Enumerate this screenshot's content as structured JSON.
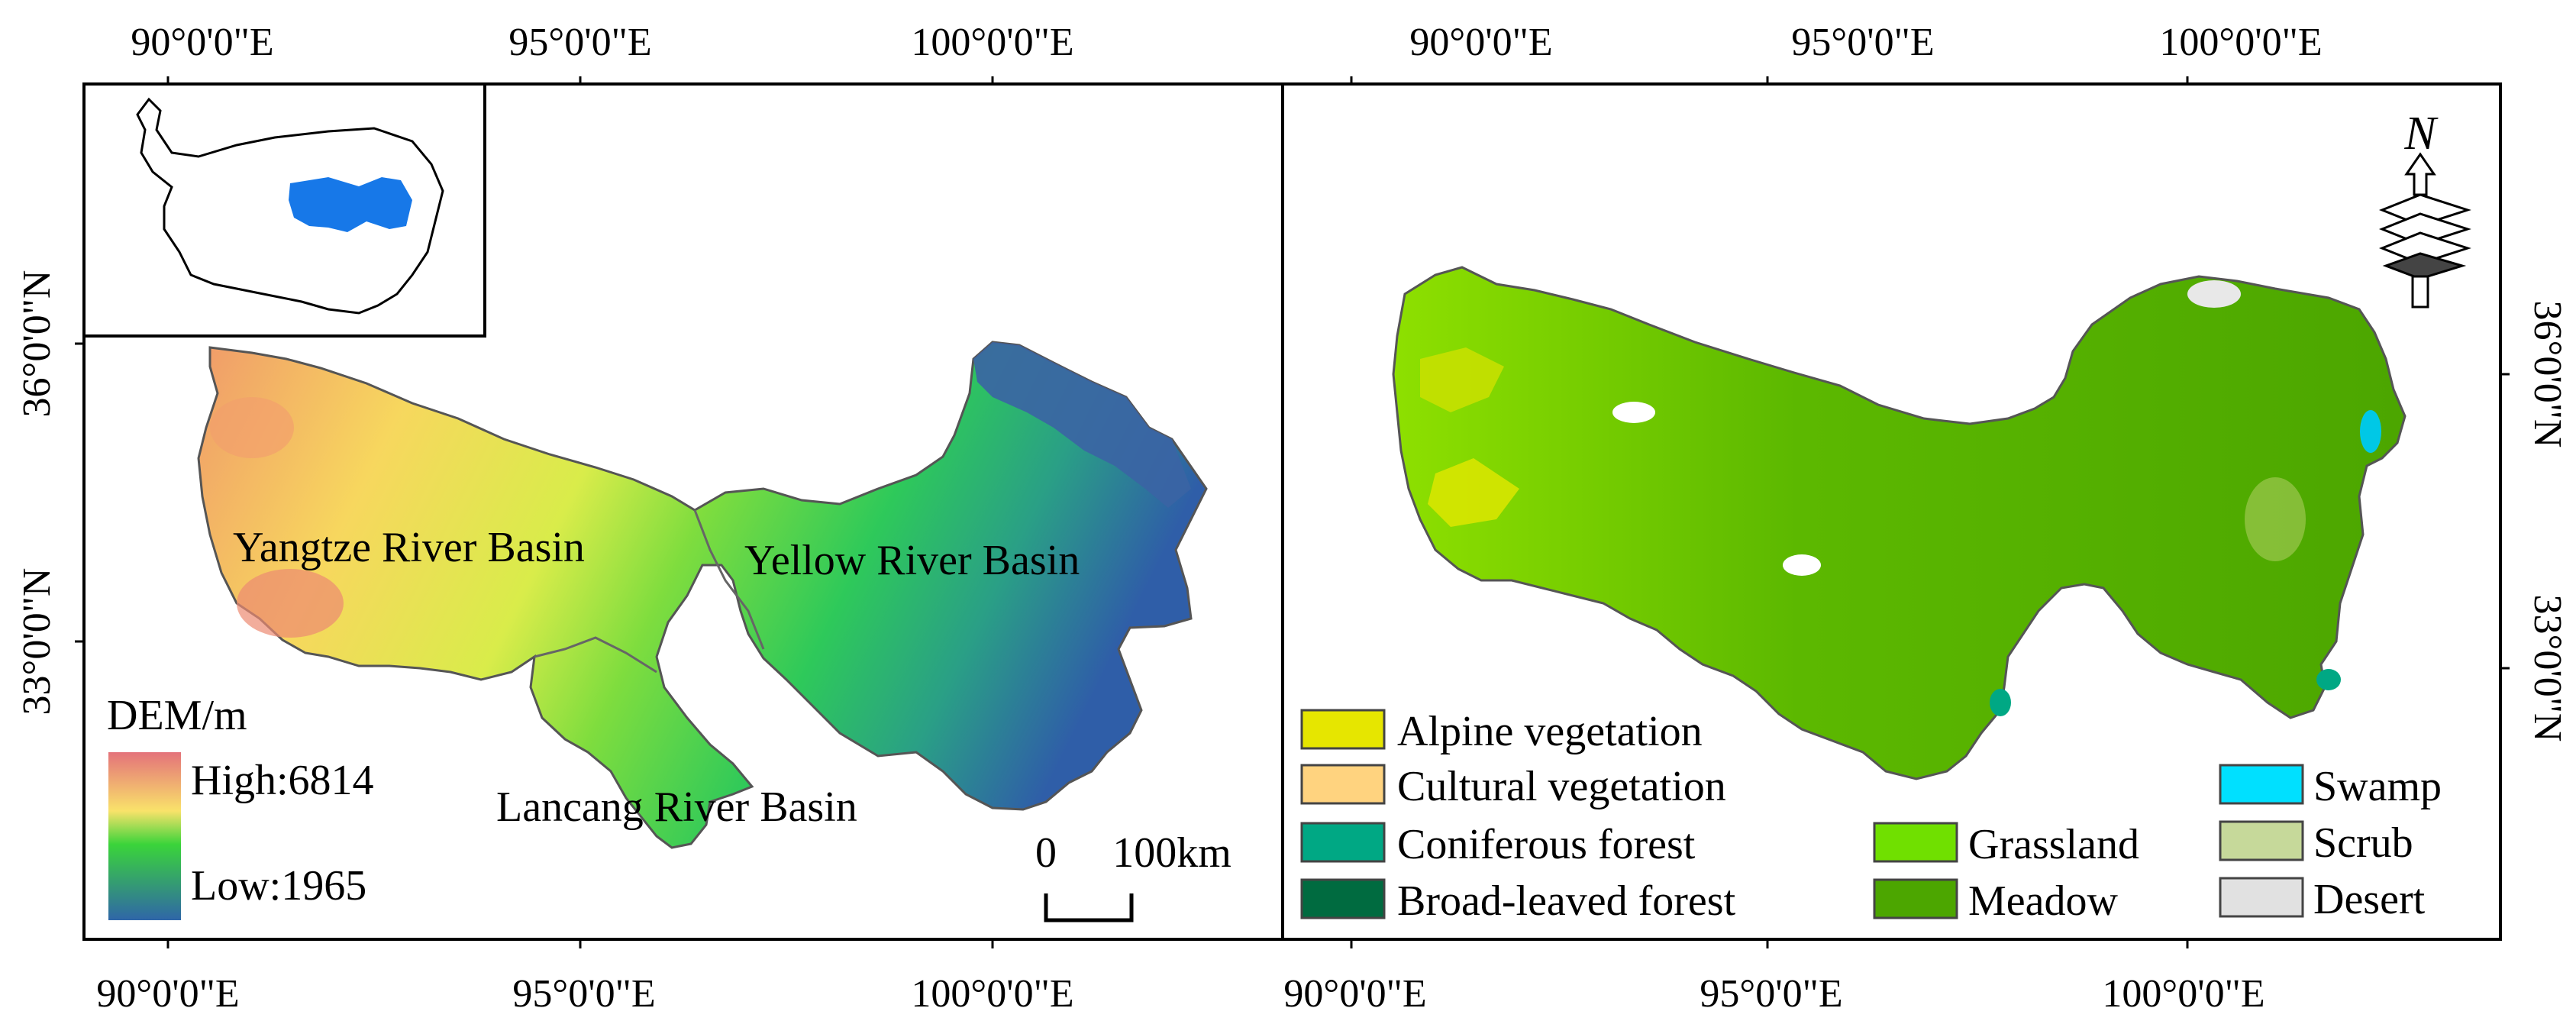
{
  "left_map": {
    "top_ticks": [
      "90°0'0\"E",
      "95°0'0\"E",
      "100°0'0\"E"
    ],
    "bottom_ticks": [
      "90°0'0\"E",
      "95°0'0\"E",
      "100°0'0\"E"
    ],
    "left_ticks": [
      "36°0'0\"N",
      "33°0'0\"N"
    ],
    "basin_labels": {
      "yangtze": "Yangtze River Basin",
      "yellow": "Yellow River Basin",
      "lancang": "Lancang River Basin"
    },
    "legend": {
      "title": "DEM/m",
      "high": "High:6814",
      "low": "Low:1965"
    },
    "scale_bar": {
      "start": "0",
      "end": "100km"
    },
    "colors": {
      "high": "#e4727a",
      "mid_high": "#f9e26a",
      "mid": "#3ad43a",
      "low": "#2f66a8",
      "inset_region": "#1778e8"
    }
  },
  "right_map": {
    "top_ticks": [
      "90°0'0\"E",
      "95°0'0\"E",
      "100°0'0\"E"
    ],
    "bottom_ticks": [
      "90°0'0\"E",
      "95°0'0\"E",
      "100°0'0\"E"
    ],
    "right_ticks": [
      "36°0'0\"N",
      "33°0'0\"N"
    ],
    "north_label": "N",
    "legend_items": [
      {
        "label": "Alpine vegetation",
        "color": "#e6e600"
      },
      {
        "label": "Cultural vegetation",
        "color": "#ffd37f"
      },
      {
        "label": "Coniferous forest",
        "color": "#00a884"
      },
      {
        "label": "Broad-leaved forest",
        "color": "#006b40"
      },
      {
        "label": "Grassland",
        "color": "#70e000"
      },
      {
        "label": "Meadow",
        "color": "#4ca600"
      },
      {
        "label": "Swamp",
        "color": "#00e0ff"
      },
      {
        "label": "Scrub",
        "color": "#c6d99a"
      },
      {
        "label": "Desert",
        "color": "#e1e1e1"
      }
    ]
  }
}
